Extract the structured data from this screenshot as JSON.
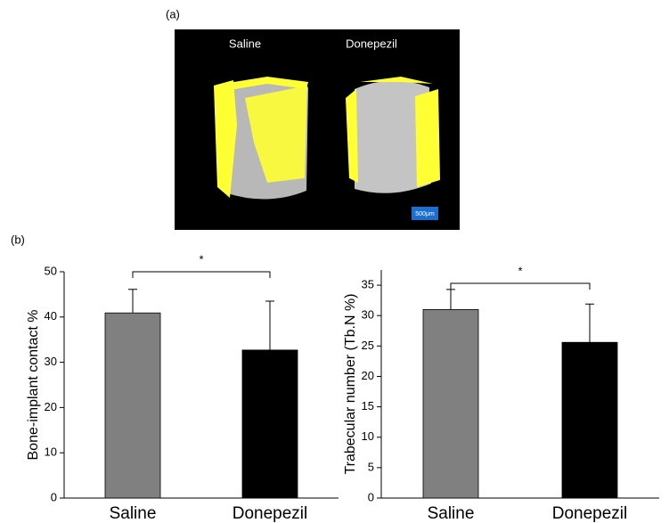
{
  "panel_a": {
    "label": "(a)",
    "labels": [
      "Saline",
      "Donepezil"
    ],
    "scale_bar": "500µm"
  },
  "panel_b_label": "(b)",
  "chart_data": [
    {
      "type": "bar",
      "ylabel": "Bone-implant contact %",
      "categories": [
        "Saline",
        "Donepezil"
      ],
      "values": [
        40.9,
        32.7
      ],
      "errors": [
        5.2,
        10.8
      ],
      "colors": [
        "#808080",
        "#000000"
      ],
      "ylim": [
        0,
        50
      ],
      "yticks": [
        0,
        10,
        20,
        30,
        40,
        50
      ],
      "annotation": "*"
    },
    {
      "type": "bar",
      "ylabel": "Trabecular number (Tb.N %)",
      "categories": [
        "Saline",
        "Donepezil"
      ],
      "values": [
        31.0,
        25.6
      ],
      "errors": [
        3.3,
        6.3
      ],
      "colors": [
        "#808080",
        "#000000"
      ],
      "ylim": [
        0,
        37.5
      ],
      "yticks": [
        0,
        5,
        10,
        15,
        20,
        25,
        30,
        35
      ],
      "annotation": "*"
    }
  ]
}
